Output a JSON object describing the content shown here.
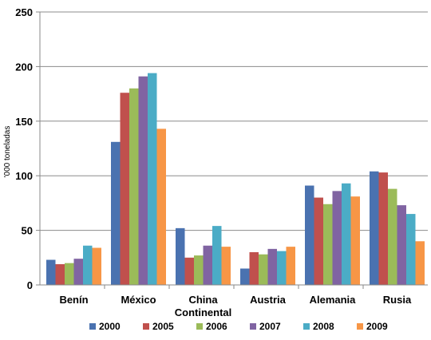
{
  "chart_data": {
    "type": "bar",
    "title": "",
    "xlabel": "",
    "ylabel": "'000 toneladas",
    "ylim": [
      0,
      250
    ],
    "yticks": [
      0,
      50,
      100,
      150,
      200,
      250
    ],
    "categories": [
      [
        "Benín"
      ],
      [
        "México"
      ],
      [
        "China",
        "Continental"
      ],
      [
        "Austria"
      ],
      [
        "Alemania"
      ],
      [
        "Rusia"
      ]
    ],
    "series": [
      {
        "name": "2000",
        "color": "#4a72b0",
        "values": [
          23,
          131,
          52,
          15,
          91,
          104
        ]
      },
      {
        "name": "2005",
        "color": "#c0504d",
        "values": [
          19,
          176,
          25,
          30,
          80,
          103
        ]
      },
      {
        "name": "2006",
        "color": "#9bbb59",
        "values": [
          20,
          180,
          27,
          28,
          74,
          88
        ]
      },
      {
        "name": "2007",
        "color": "#8064a2",
        "values": [
          24,
          191,
          36,
          33,
          86,
          73
        ]
      },
      {
        "name": "2008",
        "color": "#4bacc6",
        "values": [
          36,
          194,
          54,
          31,
          93,
          65
        ]
      },
      {
        "name": "2009",
        "color": "#f79646",
        "values": [
          34,
          143,
          35,
          35,
          81,
          40
        ]
      }
    ],
    "grid": true,
    "legend": "bottom"
  }
}
